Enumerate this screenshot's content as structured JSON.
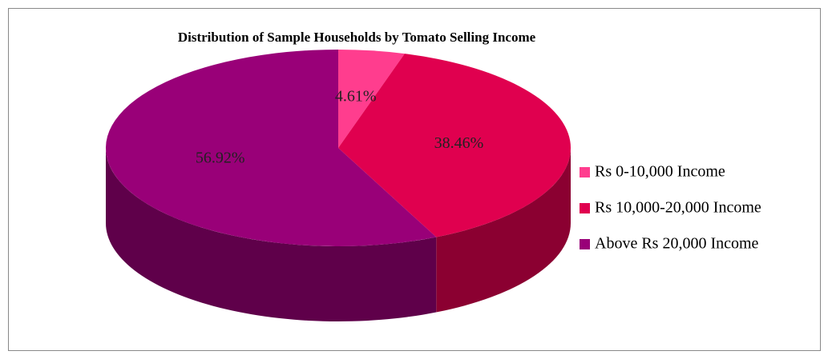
{
  "chart_data": {
    "type": "pie",
    "title": "Distribution of Sample Households by Tomato Selling Income",
    "categories": [
      "Rs 0-10,000 Income",
      "Rs 10,000-20,000 Income",
      "Above Rs 20,000 Income"
    ],
    "values": [
      4.61,
      38.46,
      56.92
    ],
    "value_labels": [
      "4.61%",
      "38.46%",
      "56.92%"
    ],
    "colors": [
      "#ff3d8e",
      "#e0004f",
      "#990078"
    ],
    "legend": "right"
  }
}
